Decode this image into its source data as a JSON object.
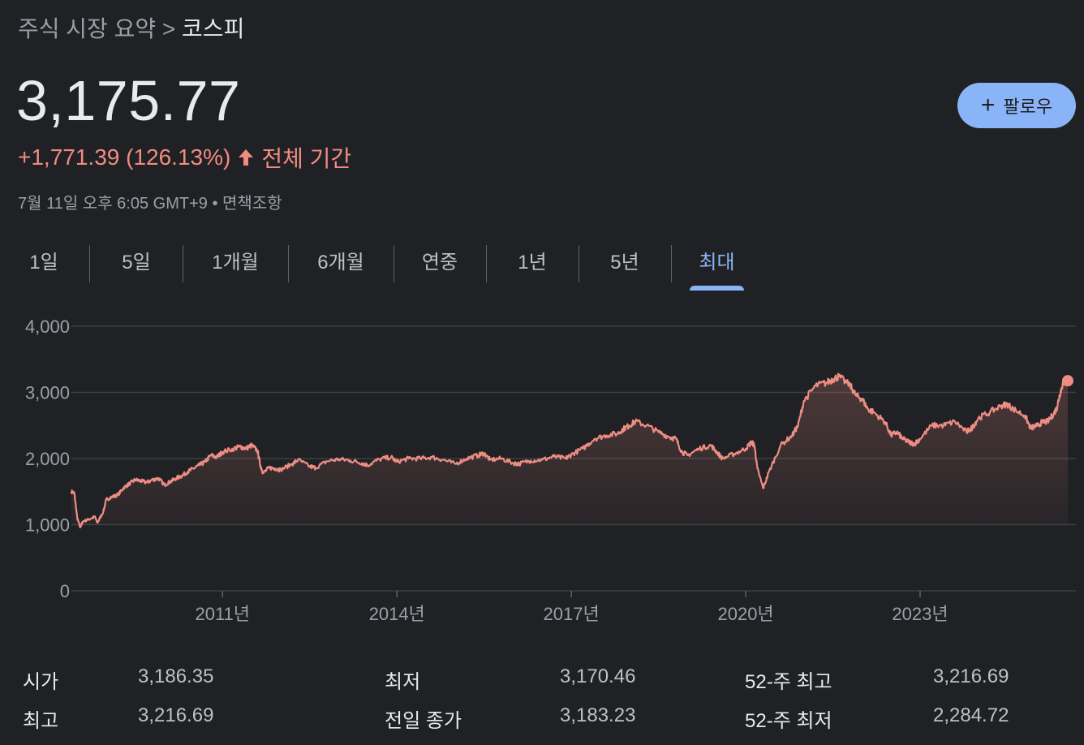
{
  "breadcrumb": {
    "parent": "주식 시장 요약",
    "separator": ">",
    "current": "코스피"
  },
  "quote": {
    "price": "3,175.77",
    "change": "+1,771.39 (126.13%)",
    "period": "전체 기간",
    "timestamp": "7월 11일 오후 6:05 GMT+9",
    "disclaimer": "• 면책조항"
  },
  "follow_button": {
    "label": "팔로우",
    "icon": "plus-icon"
  },
  "tabs": [
    {
      "label": "1일",
      "active": false
    },
    {
      "label": "5일",
      "active": false
    },
    {
      "label": "1개월",
      "active": false
    },
    {
      "label": "6개월",
      "active": false
    },
    {
      "label": "연중",
      "active": false
    },
    {
      "label": "1년",
      "active": false
    },
    {
      "label": "5년",
      "active": false
    },
    {
      "label": "최대",
      "active": true
    }
  ],
  "colors": {
    "line": "#ee8d84",
    "accent": "#8ab4f8",
    "positive_change": "#f28b82",
    "background": "#202124"
  },
  "chart_data": {
    "type": "area",
    "title": "",
    "xlabel": "",
    "ylabel": "",
    "ylim": [
      0,
      4000
    ],
    "yticks": [
      "4,000",
      "3,000",
      "2,000",
      "1,000",
      "0"
    ],
    "ytick_values": [
      4000,
      3000,
      2000,
      1000,
      0
    ],
    "xlim": [
      2008.4,
      2025.54
    ],
    "xticks": [
      "2011년",
      "2014년",
      "2017년",
      "2020년",
      "2023년"
    ],
    "xtick_values": [
      2011.0,
      2014.0,
      2017.0,
      2020.0,
      2023.0
    ],
    "grid": true,
    "series": [
      {
        "x": [
          2008.4,
          2008.45,
          2008.5,
          2008.55,
          2008.6,
          2008.7,
          2008.8,
          2008.85,
          2008.95,
          2009.0,
          2009.1,
          2009.2,
          2009.3,
          2009.4,
          2009.5,
          2009.6,
          2009.7,
          2009.8,
          2009.9,
          2010.0,
          2010.1,
          2010.2,
          2010.3,
          2010.4,
          2010.5,
          2010.6,
          2010.7,
          2010.8,
          2010.9,
          2011.0,
          2011.2,
          2011.3,
          2011.4,
          2011.5,
          2011.6,
          2011.65,
          2011.7,
          2011.8,
          2011.9,
          2012.0,
          2012.2,
          2012.3,
          2012.5,
          2012.6,
          2012.8,
          2013.0,
          2013.2,
          2013.4,
          2013.5,
          2013.7,
          2013.9,
          2014.0,
          2014.2,
          2014.4,
          2014.6,
          2014.8,
          2015.0,
          2015.2,
          2015.4,
          2015.5,
          2015.6,
          2015.8,
          2016.0,
          2016.1,
          2016.3,
          2016.5,
          2016.7,
          2016.9,
          2017.0,
          2017.2,
          2017.4,
          2017.6,
          2017.8,
          2017.9,
          2018.0,
          2018.1,
          2018.3,
          2018.5,
          2018.7,
          2018.8,
          2018.9,
          2019.0,
          2019.2,
          2019.4,
          2019.5,
          2019.6,
          2019.8,
          2020.0,
          2020.1,
          2020.15,
          2020.2,
          2020.3,
          2020.4,
          2020.6,
          2020.8,
          2020.9,
          2021.0,
          2021.2,
          2021.4,
          2021.5,
          2021.6,
          2021.8,
          2021.9,
          2022.0,
          2022.1,
          2022.2,
          2022.4,
          2022.5,
          2022.6,
          2022.7,
          2022.8,
          2022.9,
          2023.0,
          2023.2,
          2023.4,
          2023.6,
          2023.8,
          2023.9,
          2024.0,
          2024.2,
          2024.4,
          2024.5,
          2024.6,
          2024.8,
          2024.9,
          2025.0,
          2025.1,
          2025.2,
          2025.3,
          2025.35,
          2025.4,
          2025.45,
          2025.5,
          2025.54
        ],
        "y": [
          1500,
          1480,
          1100,
          960,
          1050,
          1080,
          1120,
          1030,
          1200,
          1380,
          1420,
          1450,
          1560,
          1620,
          1680,
          1660,
          1640,
          1680,
          1700,
          1600,
          1650,
          1700,
          1740,
          1800,
          1850,
          1900,
          1950,
          2050,
          2020,
          2100,
          2150,
          2180,
          2150,
          2200,
          2120,
          1900,
          1780,
          1860,
          1850,
          1830,
          1920,
          1980,
          1880,
          1860,
          1960,
          1990,
          1970,
          1930,
          1900,
          1990,
          2020,
          1950,
          2000,
          2000,
          2020,
          1980,
          1920,
          2000,
          2050,
          2080,
          1980,
          2000,
          1930,
          1920,
          1970,
          1980,
          2030,
          2000,
          2060,
          2150,
          2300,
          2350,
          2380,
          2450,
          2500,
          2560,
          2500,
          2400,
          2320,
          2300,
          2100,
          2050,
          2150,
          2200,
          2100,
          2000,
          2070,
          2150,
          2250,
          2200,
          1850,
          1550,
          1800,
          2200,
          2350,
          2500,
          2870,
          3100,
          3150,
          3200,
          3240,
          3100,
          2950,
          2900,
          2750,
          2700,
          2550,
          2350,
          2400,
          2300,
          2250,
          2220,
          2300,
          2500,
          2500,
          2560,
          2400,
          2470,
          2610,
          2700,
          2800,
          2820,
          2750,
          2650,
          2460,
          2490,
          2550,
          2560,
          2680,
          2760,
          2960,
          3120,
          3180,
          3175.77
        ]
      }
    ],
    "last_value": 3175.77
  },
  "stats": [
    {
      "label": "시가",
      "value": "3,186.35"
    },
    {
      "label": "최고",
      "value": "3,216.69"
    },
    {
      "label": "최저",
      "value": "3,170.46"
    },
    {
      "label": "전일 종가",
      "value": "3,183.23"
    },
    {
      "label": "52-주 최고",
      "value": "3,216.69"
    },
    {
      "label": "52-주 최저",
      "value": "2,284.72"
    }
  ]
}
